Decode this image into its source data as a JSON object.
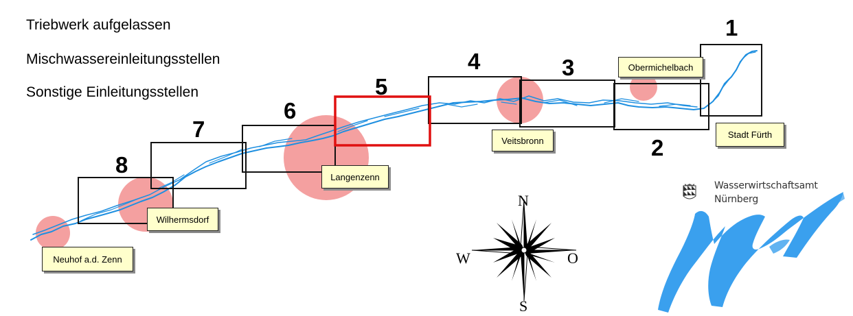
{
  "legend": {
    "items": [
      "Triebwerk aufgelassen",
      "Mischwassereinleitungsstellen",
      "Sonstige Einleitungsstellen"
    ]
  },
  "sections": [
    "1",
    "2",
    "3",
    "4",
    "5",
    "6",
    "7",
    "8"
  ],
  "highlighted_section": "5",
  "places": [
    "Obermichelbach",
    "Stadt Fürth",
    "Veitsbronn",
    "Langenzenn",
    "Wilhermsdorf",
    "Neuhof a.d. Zenn"
  ],
  "compass": {
    "north": "N",
    "south": "S",
    "west": "W",
    "east": "O"
  },
  "agency": {
    "line1": "Wasserwirtschaftsamt",
    "line2": "Nürnberg"
  },
  "colors": {
    "river": "#1e8fe0",
    "circle": "#f4a0a0",
    "highlight_frame": "#e01010",
    "label_fill": "#ffffcc",
    "logo_blue": "#3aa0ee"
  },
  "icons": [
    "compass-rose-icon",
    "bavarian-coat-of-arms-icon",
    "water-logo-icon"
  ]
}
